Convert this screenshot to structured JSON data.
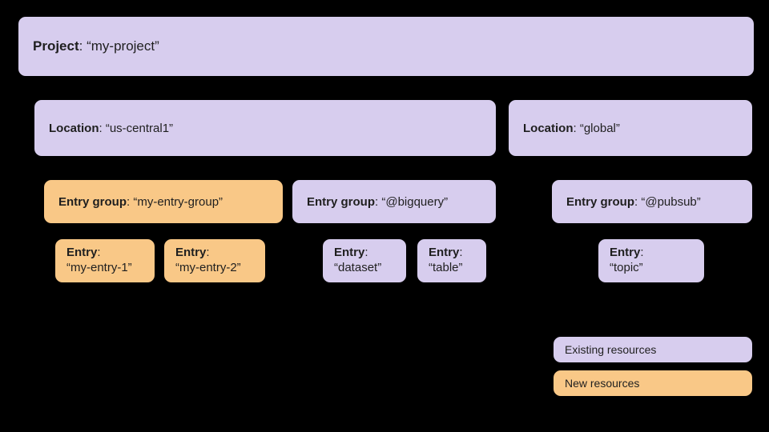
{
  "diagram": {
    "type": "tree",
    "background_color": "#000000",
    "node_border_color": "#000000",
    "node_border_radius": 10,
    "colors": {
      "existing": "#d7cdee",
      "new": "#f9c887"
    },
    "font_family": "Arial",
    "label_fontsize": 15,
    "project_fontsize": 17,
    "legend_fontsize": 14
  },
  "project": {
    "label_key": "Project",
    "value": "“my-project”"
  },
  "locations": [
    {
      "label_key": "Location",
      "value": "“us-central1”"
    },
    {
      "label_key": "Location",
      "value": "“global”"
    }
  ],
  "entry_groups": [
    {
      "label_key": "Entry group",
      "value": "“my-entry-group”",
      "kind": "new"
    },
    {
      "label_key": "Entry group",
      "value": "“@bigquery”",
      "kind": "existing"
    },
    {
      "label_key": "Entry group",
      "value": "“@pubsub”",
      "kind": "existing"
    }
  ],
  "entries": [
    {
      "label_key": "Entry",
      "value": "“my-entry-1”",
      "kind": "new"
    },
    {
      "label_key": "Entry",
      "value": "“my-entry-2”",
      "kind": "new"
    },
    {
      "label_key": "Entry",
      "value": "“dataset”",
      "kind": "existing"
    },
    {
      "label_key": "Entry",
      "value": "“table”",
      "kind": "existing"
    },
    {
      "label_key": "Entry",
      "value": "“topic”",
      "kind": "existing"
    }
  ],
  "legend": {
    "existing": "Existing resources",
    "new": "New resources"
  }
}
